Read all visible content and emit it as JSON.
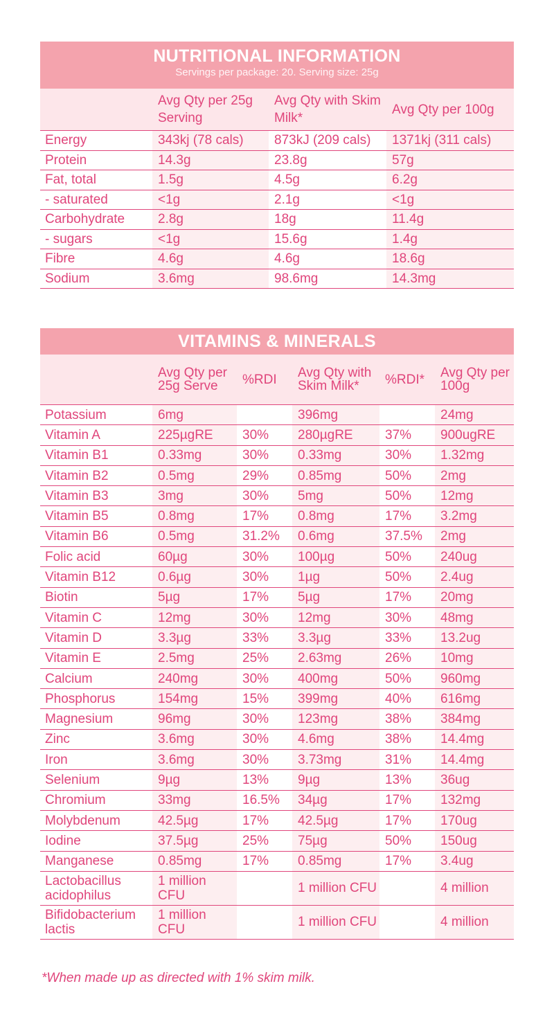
{
  "nutrition": {
    "title": "NUTRITIONAL INFORMATION",
    "subtitle": "Servings per package: 20.  Serving size: 25g",
    "headers": [
      "",
      "Avg Qty per 25g Serving",
      "Avg Qty with Skim Milk*",
      "Avg Qty per 100g"
    ],
    "rows": [
      [
        "Energy",
        "343kj (78 cals)",
        "873kJ (209 cals)",
        "1371kj (311 cals)"
      ],
      [
        "Protein",
        "14.3g",
        "23.8g",
        "57g"
      ],
      [
        "Fat, total",
        "1.5g",
        "4.5g",
        "6.2g"
      ],
      [
        " - saturated",
        "<1g",
        "2.1g",
        "<1g"
      ],
      [
        "Carbohydrate",
        "2.8g",
        "18g",
        "11.4g"
      ],
      [
        " - sugars",
        "<1g",
        "15.6g",
        "1.4g"
      ],
      [
        "Fibre",
        "4.6g",
        "4.6g",
        "18.6g"
      ],
      [
        "Sodium",
        "3.6mg",
        "98.6mg",
        "14.3mg"
      ]
    ]
  },
  "vitamins": {
    "title": "VITAMINS & MINERALS",
    "headers": [
      "",
      "Avg Qty per 25g Serve",
      "%RDI",
      "Avg Qty with Skim Milk*",
      "%RDI*",
      "Avg Qty per 100g"
    ],
    "rows": [
      [
        "Potassium",
        "6mg",
        "",
        "396mg",
        "",
        "24mg"
      ],
      [
        "Vitamin A",
        "225µgRE",
        "30%",
        "280µgRE",
        "37%",
        "900ugRE"
      ],
      [
        "Vitamin B1",
        "0.33mg",
        "30%",
        "0.33mg",
        "30%",
        "1.32mg"
      ],
      [
        "Vitamin B2",
        "0.5mg",
        "29%",
        "0.85mg",
        "50%",
        "2mg"
      ],
      [
        "Vitamin B3",
        "3mg",
        "30%",
        "5mg",
        "50%",
        "12mg"
      ],
      [
        "Vitamin B5",
        "0.8mg",
        "17%",
        "0.8mg",
        "17%",
        "3.2mg"
      ],
      [
        "Vitamin B6",
        "0.5mg",
        "31.2%",
        "0.6mg",
        "37.5%",
        "2mg"
      ],
      [
        "Folic acid",
        "60µg",
        "30%",
        "100µg",
        "50%",
        "240ug"
      ],
      [
        "Vitamin B12",
        "0.6µg",
        "30%",
        "1µg",
        "50%",
        "2.4ug"
      ],
      [
        "Biotin",
        "5µg",
        "17%",
        "5µg",
        "17%",
        "20mg"
      ],
      [
        "Vitamin C",
        "12mg",
        "30%",
        "12mg",
        "30%",
        "48mg"
      ],
      [
        "Vitamin D",
        "3.3µg",
        "33%",
        "3.3µg",
        "33%",
        "13.2ug"
      ],
      [
        "Vitamin E",
        "2.5mg",
        "25%",
        "2.63mg",
        "26%",
        "10mg"
      ],
      [
        "Calcium",
        "240mg",
        "30%",
        "400mg",
        "50%",
        "960mg"
      ],
      [
        "Phosphorus",
        "154mg",
        "15%",
        "399mg",
        "40%",
        "616mg"
      ],
      [
        "Magnesium",
        "96mg",
        "30%",
        "123mg",
        "38%",
        "384mg"
      ],
      [
        "Zinc",
        "3.6mg",
        "30%",
        "4.6mg",
        "38%",
        "14.4mg"
      ],
      [
        "Iron",
        "3.6mg",
        "30%",
        "3.73mg",
        "31%",
        "14.4mg"
      ],
      [
        "Selenium",
        "9µg",
        "13%",
        "9µg",
        "13%",
        "36ug"
      ],
      [
        "Chromium",
        "33mg",
        "16.5%",
        "34µg",
        "17%",
        "132mg"
      ],
      [
        "Molybdenum",
        "42.5µg",
        "17%",
        "42.5µg",
        "17%",
        "170ug"
      ],
      [
        "Iodine",
        "37.5µg",
        "25%",
        "75µg",
        "50%",
        "150ug"
      ],
      [
        "Manganese",
        "0.85mg",
        "17%",
        "0.85mg",
        "17%",
        "3.4ug"
      ],
      [
        "Lactobacillus acidophilus",
        "1 million CFU",
        "",
        "1 million CFU",
        "",
        "4 million"
      ],
      [
        "Bifidobacterium lactis",
        "1 million CFU",
        "",
        "1 million CFU",
        "",
        "4 million"
      ]
    ]
  },
  "footnote": "*When made up as directed with 1% skim milk."
}
